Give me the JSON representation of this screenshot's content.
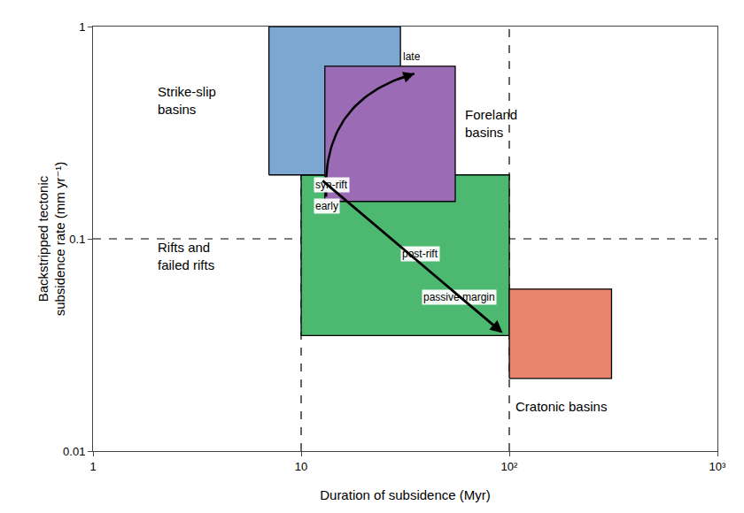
{
  "chart_data": {
    "type": "regions",
    "xlabel": "Duration of subsidence (Myr)",
    "ylabel": "Backstripped tectonic\nsubsidence rate (mm yr⁻¹)",
    "log": true,
    "xlim": [
      1,
      1000
    ],
    "ylim": [
      0.01,
      1
    ],
    "xticks": [
      1,
      10,
      {
        "value": 100,
        "label": "10²"
      },
      {
        "value": 1000,
        "label": "10³"
      }
    ],
    "yticks": [
      0.01,
      0.1,
      1
    ],
    "grid": false,
    "reference_lines": {
      "x": [
        10,
        100
      ],
      "y": [
        0.1
      ],
      "line_style": "dashed"
    },
    "boxes": [
      {
        "label": "Rifts and\nfailed rifts",
        "x0": 10,
        "x1": 100,
        "y0": 0.035,
        "y1": 0.2,
        "color": "#4db870",
        "label_x": 2.0,
        "label_y": 0.083,
        "anchor": "middle left"
      },
      {
        "label": "Strike-slip\nbasins",
        "x0": 7,
        "x1": 30,
        "y0": 0.2,
        "y1": 1.0,
        "color": "#7ba7d0",
        "label_x": 2.0,
        "label_y": 0.45,
        "anchor": "middle left"
      },
      {
        "label": "Foreland\nbasins",
        "x0": 13,
        "x1": 55,
        "y0": 0.15,
        "y1": 0.65,
        "color": "#9b6bb5",
        "label_x": 60,
        "label_y": 0.35,
        "anchor": "middle left"
      },
      {
        "label": "Cratonic basins",
        "x0": 100,
        "x1": 310,
        "y0": 0.022,
        "y1": 0.058,
        "color": "#e8856a",
        "label_x": 105,
        "label_y": 0.018,
        "anchor": "top left"
      }
    ],
    "annotations": [
      {
        "text": "syn-rift",
        "x": 11.5,
        "y": 0.195,
        "anchor": "top left"
      },
      {
        "text": "post-rift",
        "x": 30,
        "y": 0.093,
        "anchor": "top left"
      },
      {
        "text": "passive margin",
        "x": 38,
        "y": 0.058,
        "anchor": "top left"
      },
      {
        "text": "early",
        "x": 11.5,
        "y": 0.155,
        "anchor": "top left"
      },
      {
        "text": "late",
        "x": 34,
        "y": 0.66,
        "anchor": "bottom center"
      }
    ],
    "arrows": [
      {
        "from": [
          12.5,
          0.19
        ],
        "to": [
          93,
          0.036
        ],
        "line_style": "straight"
      },
      {
        "from": [
          13.2,
          0.158
        ],
        "to": [
          35,
          0.6
        ],
        "line_style": "curved"
      }
    ]
  }
}
